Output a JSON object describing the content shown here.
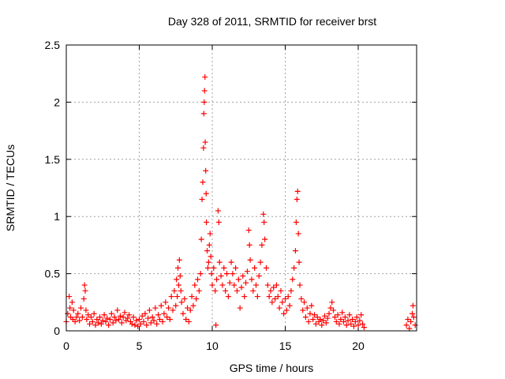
{
  "chart_data": {
    "type": "scatter",
    "title": "Day 328 of 2011, SRMTID for receiver brst",
    "xlabel": "GPS time / hours",
    "ylabel": "SRMTID / TECUs",
    "xlim": [
      0,
      24
    ],
    "ylim": [
      0,
      2.5
    ],
    "xticks": [
      0,
      5,
      10,
      15,
      20
    ],
    "yticks": [
      0,
      0.5,
      1,
      1.5,
      2,
      2.5
    ],
    "xtick_labels": [
      "0",
      "5",
      "10",
      "15",
      "20"
    ],
    "ytick_labels": [
      "0",
      "0.5",
      "1",
      "1.5",
      "2",
      "2.5"
    ],
    "grid": true,
    "marker": "plus",
    "color": "#ff0000",
    "series": [
      {
        "points": [
          [
            0.0,
            0.08
          ],
          [
            0.1,
            0.15
          ],
          [
            0.2,
            0.3
          ],
          [
            0.25,
            0.2
          ],
          [
            0.3,
            0.12
          ],
          [
            0.4,
            0.25
          ],
          [
            0.45,
            0.1
          ],
          [
            0.5,
            0.18
          ],
          [
            0.6,
            0.08
          ],
          [
            0.7,
            0.12
          ],
          [
            0.8,
            0.15
          ],
          [
            0.9,
            0.09
          ],
          [
            1.0,
            0.2
          ],
          [
            1.1,
            0.12
          ],
          [
            1.2,
            0.28
          ],
          [
            1.25,
            0.4
          ],
          [
            1.3,
            0.35
          ],
          [
            1.35,
            0.18
          ],
          [
            1.4,
            0.1
          ],
          [
            1.5,
            0.14
          ],
          [
            1.6,
            0.06
          ],
          [
            1.7,
            0.12
          ],
          [
            1.8,
            0.08
          ],
          [
            1.9,
            0.15
          ],
          [
            2.0,
            0.05
          ],
          [
            2.1,
            0.1
          ],
          [
            2.2,
            0.07
          ],
          [
            2.3,
            0.12
          ],
          [
            2.4,
            0.06
          ],
          [
            2.5,
            0.09
          ],
          [
            2.6,
            0.14
          ],
          [
            2.7,
            0.08
          ],
          [
            2.8,
            0.11
          ],
          [
            2.9,
            0.05
          ],
          [
            3.0,
            0.1
          ],
          [
            3.1,
            0.15
          ],
          [
            3.2,
            0.07
          ],
          [
            3.3,
            0.12
          ],
          [
            3.4,
            0.09
          ],
          [
            3.5,
            0.18
          ],
          [
            3.6,
            0.1
          ],
          [
            3.7,
            0.13
          ],
          [
            3.8,
            0.07
          ],
          [
            3.9,
            0.12
          ],
          [
            4.0,
            0.16
          ],
          [
            4.1,
            0.09
          ],
          [
            4.2,
            0.11
          ],
          [
            4.3,
            0.14
          ],
          [
            4.4,
            0.08
          ],
          [
            4.5,
            0.06
          ],
          [
            4.6,
            0.12
          ],
          [
            4.7,
            0.05
          ],
          [
            4.8,
            0.09
          ],
          [
            4.9,
            0.04
          ],
          [
            5.0,
            0.1
          ],
          [
            5.1,
            0.06
          ],
          [
            5.2,
            0.13
          ],
          [
            5.3,
            0.08
          ],
          [
            5.4,
            0.15
          ],
          [
            5.5,
            0.05
          ],
          [
            5.6,
            0.11
          ],
          [
            5.7,
            0.18
          ],
          [
            5.8,
            0.07
          ],
          [
            5.9,
            0.12
          ],
          [
            6.0,
            0.09
          ],
          [
            6.1,
            0.2
          ],
          [
            6.2,
            0.06
          ],
          [
            6.3,
            0.14
          ],
          [
            6.4,
            0.1
          ],
          [
            6.5,
            0.22
          ],
          [
            6.6,
            0.08
          ],
          [
            6.7,
            0.15
          ],
          [
            6.8,
            0.25
          ],
          [
            6.9,
            0.12
          ],
          [
            7.0,
            0.2
          ],
          [
            7.1,
            0.1
          ],
          [
            7.2,
            0.3
          ],
          [
            7.3,
            0.18
          ],
          [
            7.4,
            0.35
          ],
          [
            7.5,
            0.22
          ],
          [
            7.55,
            0.45
          ],
          [
            7.6,
            0.3
          ],
          [
            7.65,
            0.55
          ],
          [
            7.7,
            0.4
          ],
          [
            7.75,
            0.62
          ],
          [
            7.8,
            0.48
          ],
          [
            7.85,
            0.35
          ],
          [
            7.9,
            0.25
          ],
          [
            8.0,
            0.15
          ],
          [
            8.1,
            0.28
          ],
          [
            8.2,
            0.1
          ],
          [
            8.3,
            0.2
          ],
          [
            8.4,
            0.08
          ],
          [
            8.5,
            0.18
          ],
          [
            8.6,
            0.3
          ],
          [
            8.7,
            0.22
          ],
          [
            8.8,
            0.4
          ],
          [
            8.9,
            0.28
          ],
          [
            9.0,
            0.45
          ],
          [
            9.1,
            0.35
          ],
          [
            9.2,
            0.5
          ],
          [
            9.25,
            0.8
          ],
          [
            9.3,
            1.15
          ],
          [
            9.35,
            1.3
          ],
          [
            9.4,
            1.6
          ],
          [
            9.42,
            1.9
          ],
          [
            9.45,
            2.0
          ],
          [
            9.47,
            2.1
          ],
          [
            9.5,
            2.22
          ],
          [
            9.52,
            1.65
          ],
          [
            9.55,
            1.4
          ],
          [
            9.58,
            1.2
          ],
          [
            9.6,
            0.95
          ],
          [
            9.65,
            0.7
          ],
          [
            9.7,
            0.55
          ],
          [
            9.75,
            0.6
          ],
          [
            9.8,
            0.75
          ],
          [
            9.85,
            0.85
          ],
          [
            9.9,
            0.65
          ],
          [
            9.95,
            0.5
          ],
          [
            10.0,
            0.4
          ],
          [
            10.1,
            0.55
          ],
          [
            10.2,
            0.35
          ],
          [
            10.25,
            0.05
          ],
          [
            10.3,
            0.45
          ],
          [
            10.4,
            1.05
          ],
          [
            10.45,
            0.95
          ],
          [
            10.5,
            0.6
          ],
          [
            10.6,
            0.48
          ],
          [
            10.7,
            0.4
          ],
          [
            10.8,
            0.55
          ],
          [
            10.9,
            0.35
          ],
          [
            11.0,
            0.5
          ],
          [
            11.1,
            0.3
          ],
          [
            11.2,
            0.42
          ],
          [
            11.3,
            0.6
          ],
          [
            11.4,
            0.5
          ],
          [
            11.5,
            0.4
          ],
          [
            11.6,
            0.55
          ],
          [
            11.7,
            0.35
          ],
          [
            11.8,
            0.45
          ],
          [
            11.9,
            0.2
          ],
          [
            12.0,
            0.38
          ],
          [
            12.1,
            0.48
          ],
          [
            12.2,
            0.3
          ],
          [
            12.3,
            0.42
          ],
          [
            12.4,
            0.52
          ],
          [
            12.5,
            0.88
          ],
          [
            12.55,
            0.75
          ],
          [
            12.6,
            0.62
          ],
          [
            12.7,
            0.45
          ],
          [
            12.8,
            0.35
          ],
          [
            12.9,
            0.55
          ],
          [
            13.0,
            0.4
          ],
          [
            13.1,
            0.3
          ],
          [
            13.2,
            0.48
          ],
          [
            13.3,
            0.6
          ],
          [
            13.4,
            0.75
          ],
          [
            13.5,
            1.02
          ],
          [
            13.55,
            0.95
          ],
          [
            13.6,
            0.8
          ],
          [
            13.7,
            0.55
          ],
          [
            13.8,
            0.4
          ],
          [
            13.9,
            0.3
          ],
          [
            14.0,
            0.35
          ],
          [
            14.1,
            0.25
          ],
          [
            14.2,
            0.38
          ],
          [
            14.3,
            0.28
          ],
          [
            14.4,
            0.4
          ],
          [
            14.5,
            0.3
          ],
          [
            14.6,
            0.2
          ],
          [
            14.7,
            0.35
          ],
          [
            14.8,
            0.25
          ],
          [
            14.9,
            0.15
          ],
          [
            15.0,
            0.28
          ],
          [
            15.1,
            0.18
          ],
          [
            15.2,
            0.3
          ],
          [
            15.3,
            0.22
          ],
          [
            15.4,
            0.35
          ],
          [
            15.5,
            0.45
          ],
          [
            15.6,
            0.55
          ],
          [
            15.7,
            0.7
          ],
          [
            15.75,
            0.95
          ],
          [
            15.8,
            1.15
          ],
          [
            15.85,
            1.22
          ],
          [
            15.9,
            0.85
          ],
          [
            15.95,
            0.6
          ],
          [
            16.0,
            0.4
          ],
          [
            16.1,
            0.28
          ],
          [
            16.2,
            0.18
          ],
          [
            16.3,
            0.25
          ],
          [
            16.4,
            0.12
          ],
          [
            16.5,
            0.2
          ],
          [
            16.6,
            0.08
          ],
          [
            16.7,
            0.15
          ],
          [
            16.8,
            0.22
          ],
          [
            16.9,
            0.1
          ],
          [
            17.0,
            0.14
          ],
          [
            17.1,
            0.06
          ],
          [
            17.2,
            0.12
          ],
          [
            17.3,
            0.08
          ],
          [
            17.4,
            0.1
          ],
          [
            17.5,
            0.05
          ],
          [
            17.6,
            0.09
          ],
          [
            17.7,
            0.13
          ],
          [
            17.8,
            0.07
          ],
          [
            17.9,
            0.11
          ],
          [
            18.0,
            0.15
          ],
          [
            18.1,
            0.2
          ],
          [
            18.2,
            0.25
          ],
          [
            18.3,
            0.18
          ],
          [
            18.4,
            0.12
          ],
          [
            18.5,
            0.08
          ],
          [
            18.6,
            0.14
          ],
          [
            18.7,
            0.06
          ],
          [
            18.8,
            0.1
          ],
          [
            18.9,
            0.16
          ],
          [
            19.0,
            0.08
          ],
          [
            19.1,
            0.12
          ],
          [
            19.2,
            0.05
          ],
          [
            19.3,
            0.09
          ],
          [
            19.4,
            0.14
          ],
          [
            19.5,
            0.06
          ],
          [
            19.6,
            0.1
          ],
          [
            19.7,
            0.04
          ],
          [
            19.8,
            0.08
          ],
          [
            19.9,
            0.12
          ],
          [
            20.0,
            0.05
          ],
          [
            20.1,
            0.09
          ],
          [
            20.2,
            0.14
          ],
          [
            20.3,
            0.06
          ],
          [
            20.4,
            0.03
          ],
          [
            23.3,
            0.05
          ],
          [
            23.4,
            0.1
          ],
          [
            23.5,
            0.02
          ],
          [
            23.6,
            0.08
          ],
          [
            23.7,
            0.15
          ],
          [
            23.75,
            0.22
          ],
          [
            23.8,
            0.12
          ],
          [
            23.9,
            0.05
          ]
        ]
      }
    ]
  }
}
